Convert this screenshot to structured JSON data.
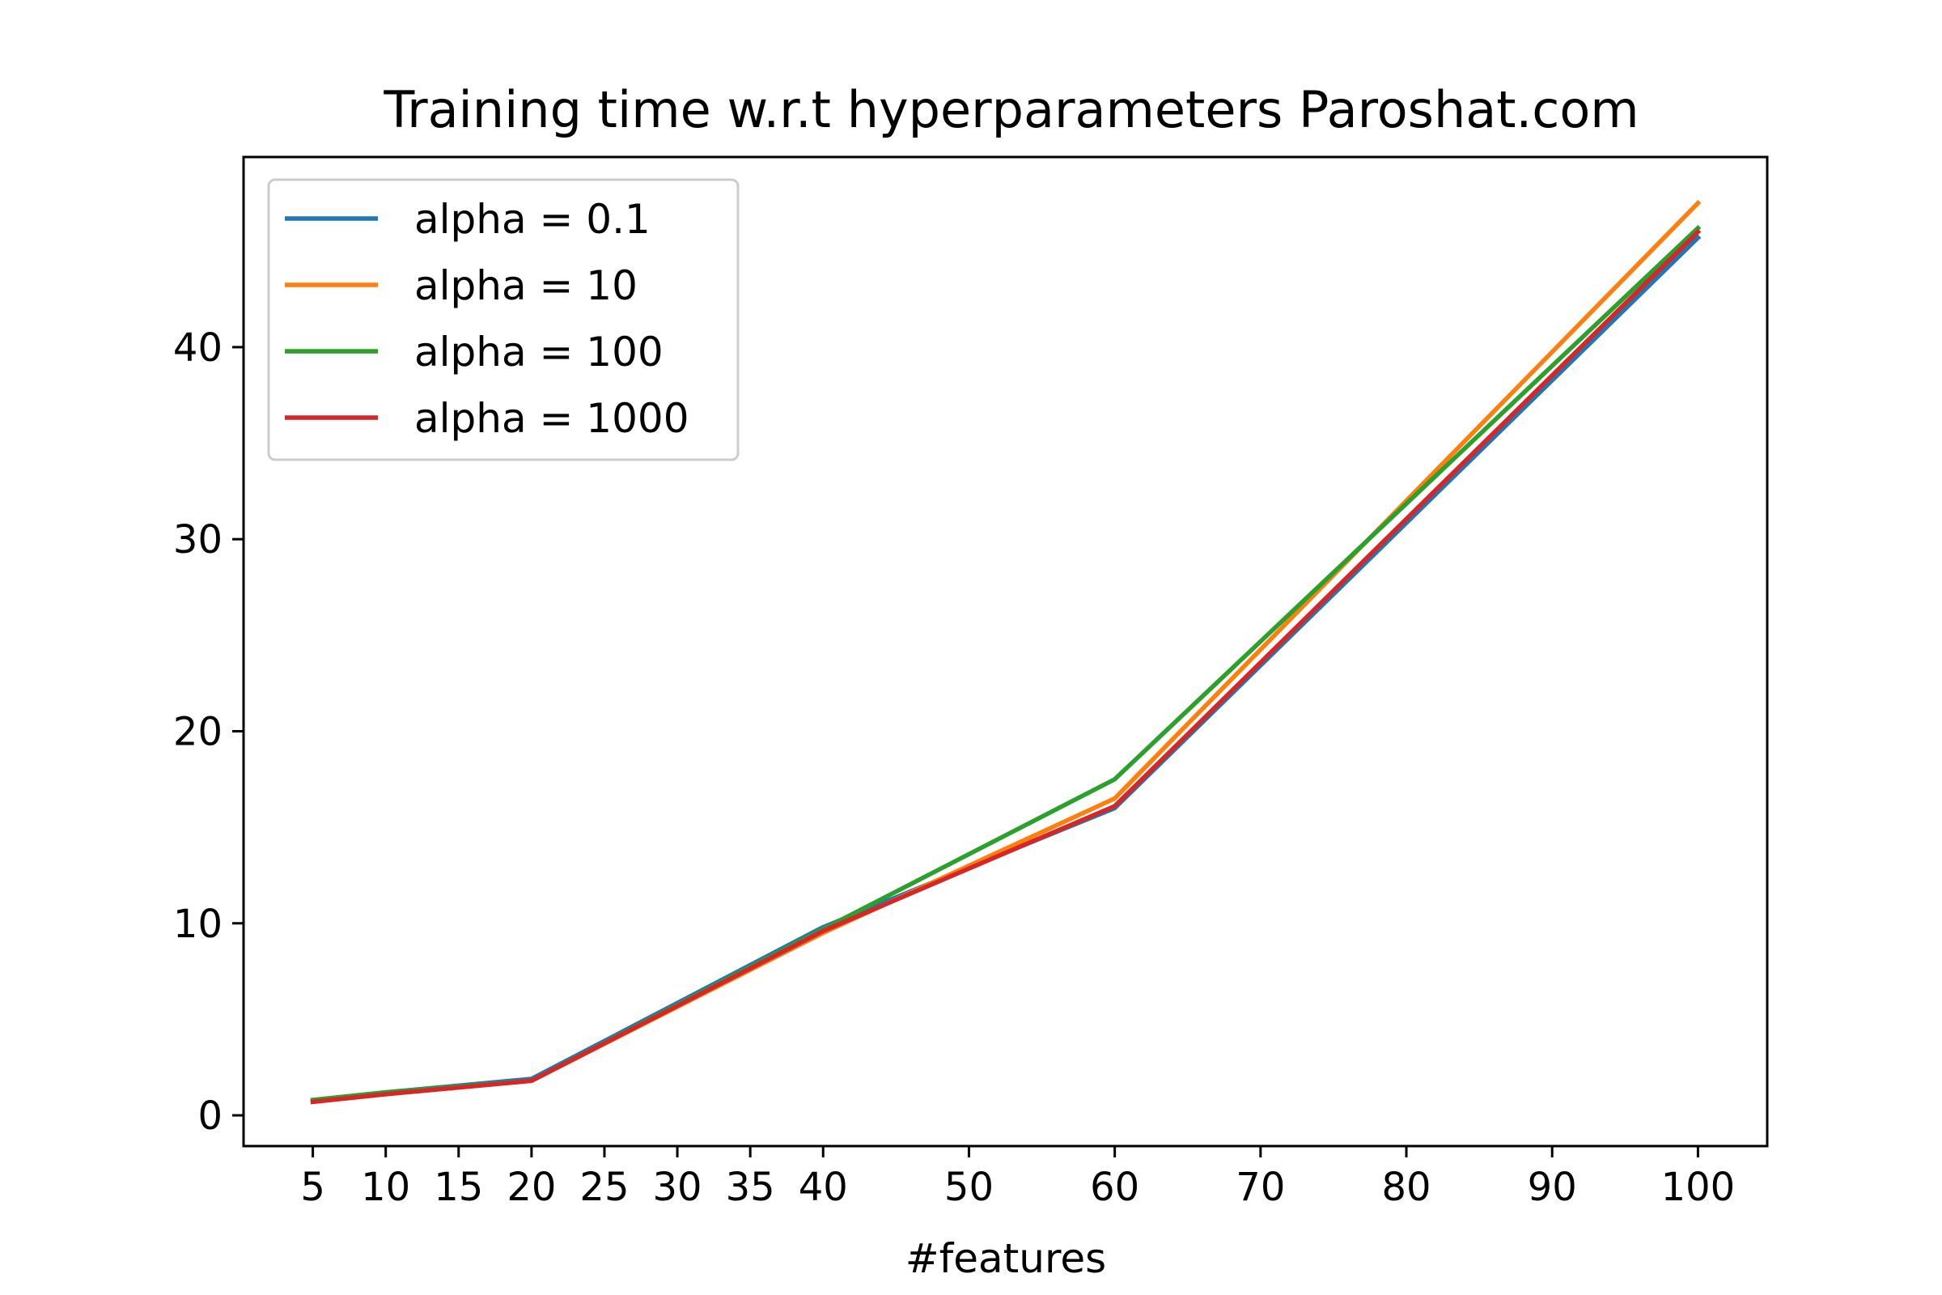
{
  "chart_data": {
    "type": "line",
    "title": "Training time w.r.t hyperparameters Paroshat.com",
    "xlabel": "#features",
    "ylabel": "",
    "x": [
      5,
      10,
      20,
      40,
      60,
      100
    ],
    "xticks": [
      5,
      10,
      15,
      20,
      25,
      30,
      35,
      40,
      50,
      60,
      70,
      80,
      90,
      100
    ],
    "yticks": [
      0,
      10,
      20,
      30,
      40
    ],
    "xlim": [
      0.25,
      104.75
    ],
    "ylim": [
      -1.6,
      49.9
    ],
    "grid": false,
    "legend_position": "upper-left",
    "series": [
      {
        "name": "alpha = 0.1",
        "color": "#1f77b4",
        "values": [
          0.8,
          1.2,
          1.9,
          9.8,
          16.0,
          45.7
        ]
      },
      {
        "name": "alpha = 10",
        "color": "#ff7f0e",
        "values": [
          0.7,
          1.1,
          1.8,
          9.5,
          16.5,
          47.5
        ]
      },
      {
        "name": "alpha = 100",
        "color": "#2ca02c",
        "values": [
          0.8,
          1.2,
          1.8,
          9.7,
          17.5,
          46.2
        ]
      },
      {
        "name": "alpha = 1000",
        "color": "#d62728",
        "values": [
          0.7,
          1.1,
          1.8,
          9.6,
          16.1,
          46.0
        ]
      }
    ]
  }
}
